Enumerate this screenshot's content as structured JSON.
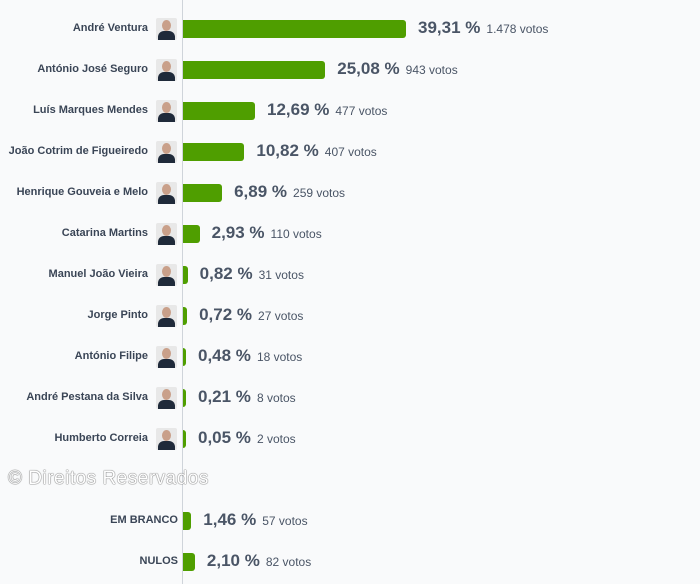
{
  "chart_data": {
    "type": "bar",
    "orientation": "horizontal",
    "categories": [
      "André Ventura",
      "António José Seguro",
      "Luís Marques Mendes",
      "João Cotrim de Figueiredo",
      "Henrique Gouveia e Melo",
      "Catarina Martins",
      "Manuel João Vieira",
      "Jorge Pinto",
      "António Filipe",
      "André Pestana da Silva",
      "Humberto Correia",
      "EM BRANCO",
      "NULOS"
    ],
    "values": [
      39.31,
      25.08,
      12.69,
      10.82,
      6.89,
      2.93,
      0.82,
      0.72,
      0.48,
      0.21,
      0.05,
      1.46,
      2.1
    ],
    "value_labels": [
      "39,31 %",
      "25,08 %",
      "12,69 %",
      "10,82 %",
      "6,89 %",
      "2,93 %",
      "0,82 %",
      "0,72 %",
      "0,48 %",
      "0,21 %",
      "0,05 %",
      "1,46 %",
      "2,10 %"
    ],
    "votes": [
      "1.478 votos",
      "943 votos",
      "477 votos",
      "407 votos",
      "259 votos",
      "110 votos",
      "31 votos",
      "27 votos",
      "18 votos",
      "8 votos",
      "2 votos",
      "57 votos",
      "82 votos"
    ],
    "has_photo": [
      true,
      true,
      true,
      true,
      true,
      true,
      true,
      true,
      true,
      true,
      true,
      false,
      false
    ],
    "bar_color": "#4f9e00",
    "grid": false
  },
  "watermark": "© Direitos Reservados"
}
